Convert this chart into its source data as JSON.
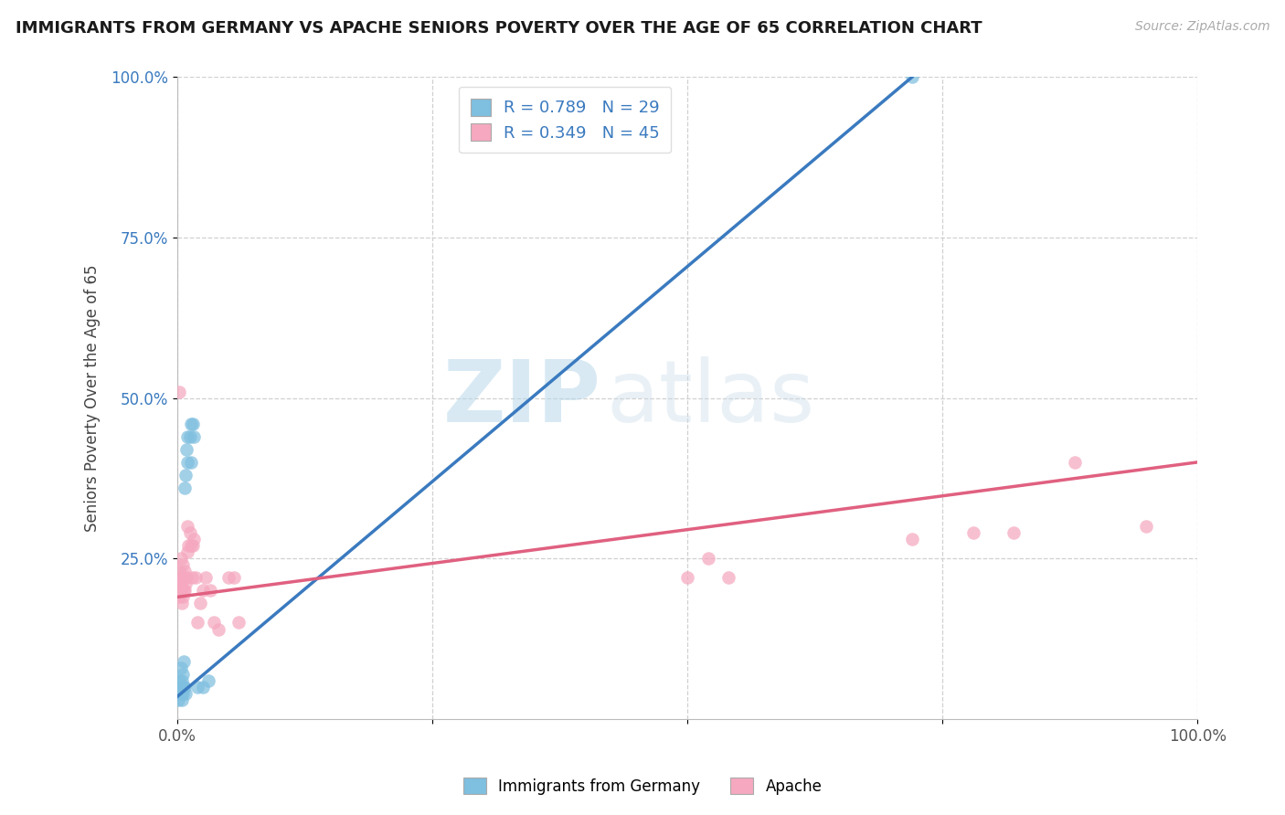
{
  "title": "IMMIGRANTS FROM GERMANY VS APACHE SENIORS POVERTY OVER THE AGE OF 65 CORRELATION CHART",
  "source": "Source: ZipAtlas.com",
  "ylabel": "Seniors Poverty Over the Age of 65",
  "blue_label": "Immigrants from Germany",
  "pink_label": "Apache",
  "blue_R": 0.789,
  "blue_N": 29,
  "pink_R": 0.349,
  "pink_N": 45,
  "blue_scatter_x": [
    0.001,
    0.001,
    0.002,
    0.002,
    0.003,
    0.003,
    0.003,
    0.004,
    0.004,
    0.005,
    0.005,
    0.006,
    0.006,
    0.007,
    0.007,
    0.008,
    0.008,
    0.009,
    0.01,
    0.01,
    0.012,
    0.013,
    0.013,
    0.015,
    0.016,
    0.02,
    0.025,
    0.03,
    0.72
  ],
  "blue_scatter_y": [
    0.05,
    0.03,
    0.04,
    0.06,
    0.05,
    0.08,
    0.04,
    0.06,
    0.03,
    0.07,
    0.04,
    0.09,
    0.05,
    0.36,
    0.05,
    0.38,
    0.04,
    0.42,
    0.4,
    0.44,
    0.44,
    0.46,
    0.4,
    0.46,
    0.44,
    0.05,
    0.05,
    0.06,
    1.0
  ],
  "pink_scatter_x": [
    0.001,
    0.001,
    0.002,
    0.002,
    0.002,
    0.003,
    0.003,
    0.003,
    0.004,
    0.004,
    0.005,
    0.005,
    0.006,
    0.006,
    0.007,
    0.007,
    0.008,
    0.009,
    0.01,
    0.01,
    0.011,
    0.012,
    0.013,
    0.014,
    0.015,
    0.016,
    0.018,
    0.02,
    0.022,
    0.025,
    0.028,
    0.032,
    0.036,
    0.04,
    0.05,
    0.055,
    0.06,
    0.5,
    0.52,
    0.54,
    0.72,
    0.78,
    0.82,
    0.88,
    0.95
  ],
  "pink_scatter_y": [
    0.2,
    0.22,
    0.19,
    0.23,
    0.51,
    0.2,
    0.21,
    0.25,
    0.22,
    0.18,
    0.24,
    0.19,
    0.2,
    0.22,
    0.23,
    0.2,
    0.21,
    0.22,
    0.3,
    0.26,
    0.27,
    0.29,
    0.27,
    0.22,
    0.27,
    0.28,
    0.22,
    0.15,
    0.18,
    0.2,
    0.22,
    0.2,
    0.15,
    0.14,
    0.22,
    0.22,
    0.15,
    0.22,
    0.25,
    0.22,
    0.28,
    0.29,
    0.29,
    0.4,
    0.3
  ],
  "blue_line_x": [
    0.0,
    0.72
  ],
  "blue_line_y": [
    0.035,
    1.0
  ],
  "pink_line_x": [
    0.0,
    1.0
  ],
  "pink_line_y": [
    0.19,
    0.4
  ],
  "xlim": [
    0.0,
    1.0
  ],
  "ylim": [
    0.0,
    1.0
  ],
  "xticks": [
    0.0,
    0.25,
    0.5,
    0.75,
    1.0
  ],
  "xtick_labels": [
    "0.0%",
    "",
    "",
    "",
    "100.0%"
  ],
  "ytick_positions": [
    0.25,
    0.5,
    0.75,
    1.0
  ],
  "ytick_labels": [
    "25.0%",
    "50.0%",
    "75.0%",
    "100.0%"
  ],
  "blue_color": "#7fbfdf",
  "pink_color": "#f5a8bf",
  "blue_line_color": "#3a7abf",
  "pink_line_color": "#e06080",
  "watermark_zip": "ZIP",
  "watermark_atlas": "atlas",
  "background_color": "#ffffff",
  "grid_color": "#d0d0d0",
  "title_fontsize": 13,
  "axis_label_color": "#555555",
  "ytick_color": "#3a7abf",
  "legend_text_color": "#3a7abf"
}
